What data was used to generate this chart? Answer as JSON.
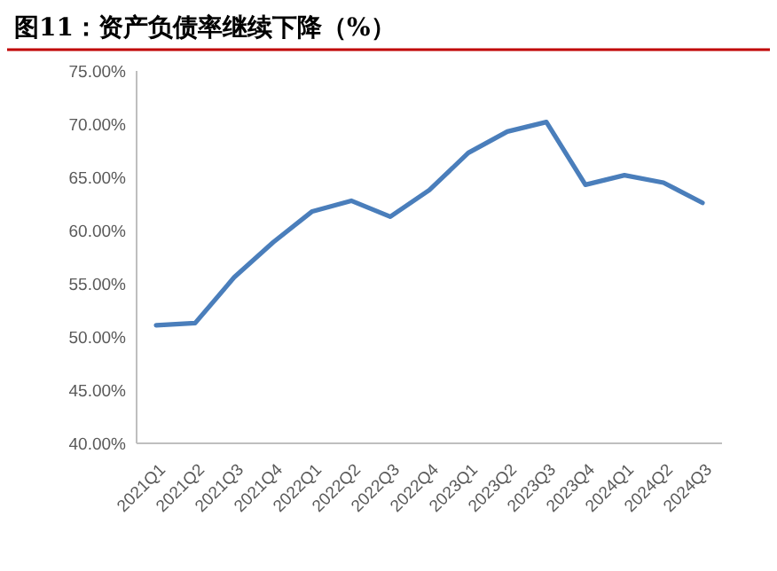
{
  "chart_data": {
    "type": "line",
    "title": "图11：资产负债率继续下降（%）",
    "categories": [
      "2021Q1",
      "2021Q2",
      "2021Q3",
      "2021Q4",
      "2022Q1",
      "2022Q2",
      "2022Q3",
      "2022Q4",
      "2023Q1",
      "2023Q2",
      "2023Q3",
      "2023Q4",
      "2024Q1",
      "2024Q2",
      "2024Q3"
    ],
    "series": [
      {
        "color": "#4a7ebb",
        "values": [
          51.1,
          51.3,
          55.6,
          58.9,
          61.8,
          62.8,
          61.3,
          63.8,
          67.3,
          69.3,
          70.2,
          64.3,
          65.2,
          64.5,
          62.6
        ]
      }
    ],
    "ylim": [
      40,
      75
    ],
    "yticks": [
      {
        "value": 40,
        "label": "40.00%"
      },
      {
        "value": 45,
        "label": "45.00%"
      },
      {
        "value": 50,
        "label": "50.00%"
      },
      {
        "value": 55,
        "label": "55.00%"
      },
      {
        "value": 60,
        "label": "60.00%"
      },
      {
        "value": 65,
        "label": "65.00%"
      },
      {
        "value": 70,
        "label": "70.00%"
      },
      {
        "value": 75,
        "label": "75.00%"
      }
    ],
    "grid": false,
    "marker": "none",
    "line_style": "solid"
  }
}
